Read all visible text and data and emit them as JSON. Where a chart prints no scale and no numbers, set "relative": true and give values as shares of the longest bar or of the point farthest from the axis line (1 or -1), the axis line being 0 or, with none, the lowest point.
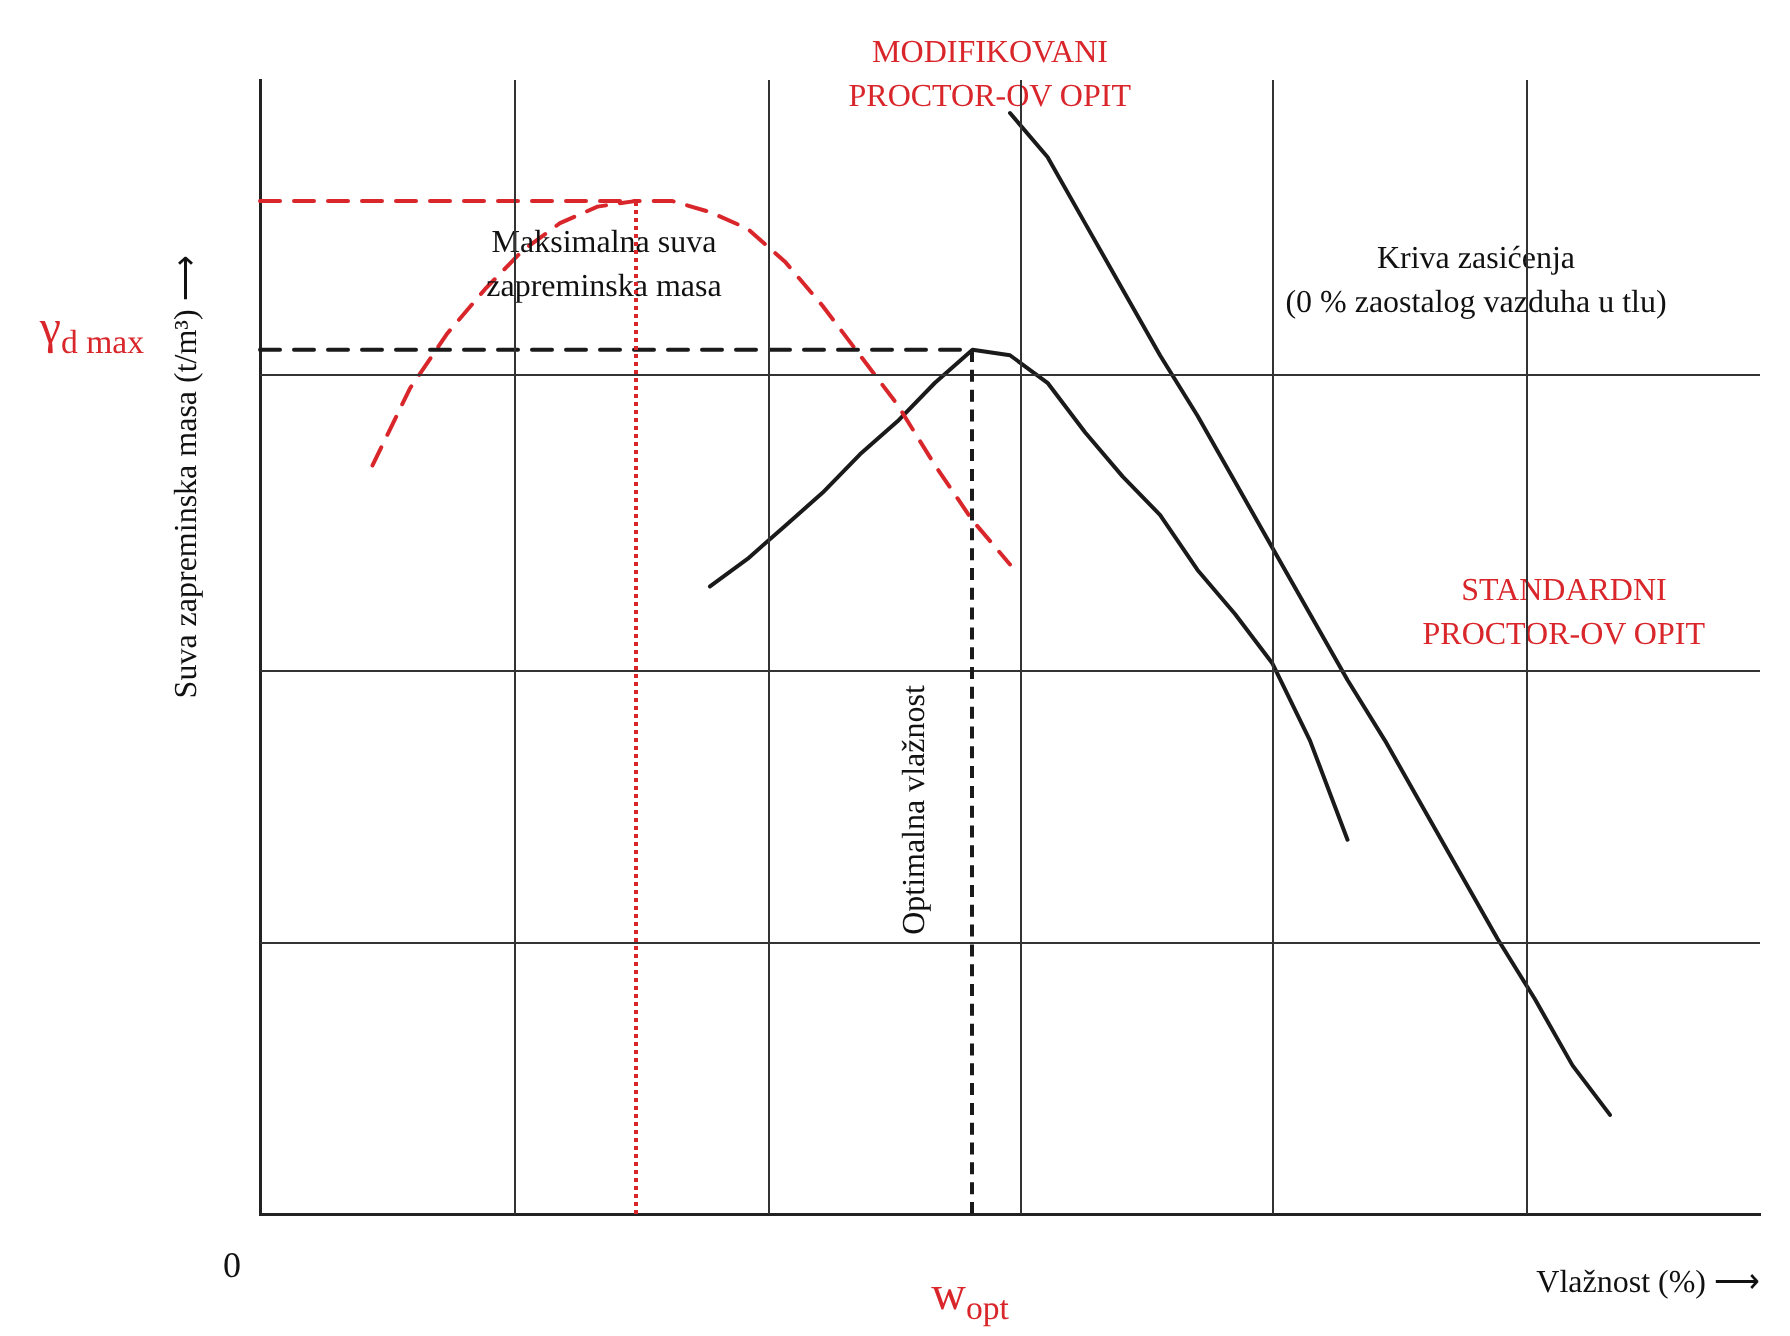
{
  "chart_data": {
    "type": "line",
    "relative": true,
    "xlabel": "Vlažnost (%) ⟶",
    "ylabel": "Suva zapreminska masa (t/m³) ⟶",
    "legend": false,
    "marker": "none",
    "categories": [
      null,
      null,
      null,
      null,
      null,
      null,
      null,
      null,
      null,
      null,
      null,
      null,
      null,
      null,
      null,
      null,
      null,
      null,
      null,
      null,
      null,
      null,
      null,
      null,
      null,
      null,
      null,
      null,
      null,
      null,
      null,
      null,
      null,
      null,
      null,
      null,
      null,
      null,
      null,
      null,
      null
    ],
    "series": [
      {
        "color": "#d9262b",
        "line_style": "dashed",
        "values": [
          0.92,
          0.92,
          0.92,
          0.92,
          0.92,
          0.92,
          0.92,
          0.92,
          0.92,
          0.92,
          0.92,
          null,
          null,
          null,
          null,
          null,
          null,
          null,
          null,
          null,
          null,
          null,
          null,
          null,
          null,
          null,
          null,
          null,
          null,
          null,
          null,
          null,
          null,
          null,
          null,
          null,
          null,
          null,
          null,
          null,
          null
        ]
      },
      {
        "color": "#1a1a1a",
        "line_style": "dashed",
        "values": [
          0.785,
          0.785,
          0.785,
          0.785,
          0.785,
          0.785,
          0.785,
          0.785,
          0.785,
          0.785,
          0.785,
          0.785,
          0.785,
          0.785,
          0.785,
          0.785,
          0.785,
          0.785,
          0.785,
          0.785,
          null,
          null,
          null,
          null,
          null,
          null,
          null,
          null,
          null,
          null,
          null,
          null,
          null,
          null,
          null,
          null,
          null,
          null,
          null,
          null,
          null
        ]
      },
      {
        "color": "#d9262b",
        "line_style": "dashed",
        "values": [
          null,
          null,
          null,
          0.68,
          0.75,
          0.8,
          0.84,
          0.875,
          0.9,
          0.915,
          0.92,
          0.92,
          0.91,
          0.895,
          0.865,
          0.825,
          0.78,
          0.735,
          0.68,
          0.63,
          0.59,
          null,
          null,
          null,
          null,
          null,
          null,
          null,
          null,
          null,
          null,
          null,
          null,
          null,
          null,
          null,
          null,
          null,
          null,
          null,
          null
        ]
      },
      {
        "color": "#1a1a1a",
        "line_style": "solid",
        "values": [
          null,
          null,
          null,
          null,
          null,
          null,
          null,
          null,
          null,
          null,
          null,
          null,
          0.57,
          0.595,
          0.625,
          0.655,
          0.69,
          0.72,
          0.755,
          0.785,
          0.78,
          0.755,
          0.71,
          0.67,
          0.635,
          0.585,
          0.545,
          0.5,
          0.43,
          0.34,
          null,
          null,
          null,
          null,
          null,
          null,
          null,
          null,
          null,
          null,
          null
        ]
      },
      {
        "color": "#1a1a1a",
        "line_style": "solid",
        "values": [
          null,
          null,
          null,
          null,
          null,
          null,
          null,
          null,
          null,
          null,
          null,
          null,
          null,
          null,
          null,
          null,
          null,
          null,
          null,
          null,
          1,
          0.96,
          0.9,
          0.84,
          0.78,
          0.725,
          0.665,
          0.605,
          0.545,
          0.485,
          0.43,
          0.37,
          0.31,
          0.25,
          0.195,
          0.135,
          0.09,
          null,
          null,
          null,
          null
        ]
      }
    ],
    "annotations": [
      "MODIFIKOVANI\nPROCTOR-OV OPIT",
      "Maksimalna suva\nzapreminska masa",
      "Kriva zasićenja\n(0 % zaostalog vazduha u tlu)",
      "STANDARDNI\nPROCTOR-OV OPIT",
      "γ$_{d max}$",
      "w$_{opt}$",
      "0",
      "Optimalna vlažnost"
    ]
  }
}
